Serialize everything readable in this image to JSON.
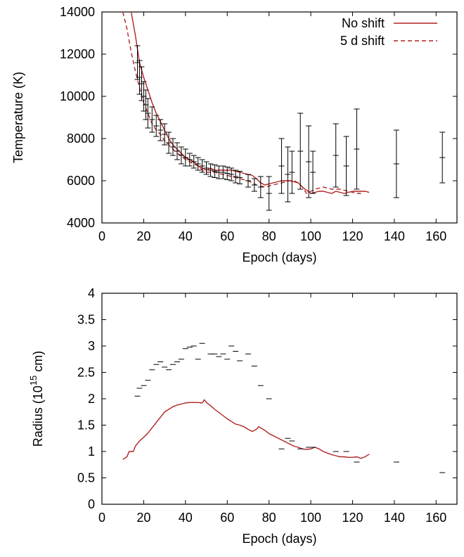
{
  "chart_data": [
    {
      "type": "line",
      "xlabel": "Epoch (days)",
      "ylabel": "Temperature (K)",
      "xlim": [
        0,
        170
      ],
      "ylim": [
        4000,
        14000
      ],
      "xticks": [
        0,
        20,
        40,
        60,
        80,
        100,
        120,
        140,
        160
      ],
      "yticks": [
        4000,
        6000,
        8000,
        10000,
        12000,
        14000
      ],
      "legend_position": "top-right",
      "colors": {
        "model": "#b22222",
        "data": "#000000"
      },
      "series": [
        {
          "name": "No shift",
          "style": "solid",
          "x": [
            14,
            16,
            18,
            20,
            22,
            24,
            26,
            28,
            30,
            32,
            34,
            36,
            38,
            40,
            42,
            44,
            46,
            48,
            50,
            52,
            54,
            56,
            58,
            60,
            62,
            64,
            66,
            68,
            70,
            72,
            74,
            76,
            78,
            80,
            82,
            84,
            86,
            88,
            90,
            92,
            94,
            96,
            98,
            100,
            102,
            104,
            106,
            108,
            110,
            112,
            114,
            116,
            118,
            120,
            122,
            124,
            126,
            128
          ],
          "y": [
            14000,
            12900,
            11600,
            10900,
            10300,
            9700,
            9200,
            8800,
            8400,
            8000,
            7700,
            7500,
            7300,
            7100,
            7000,
            6900,
            6700,
            6600,
            6500,
            6600,
            6500,
            6500,
            6500,
            6500,
            6500,
            6450,
            6400,
            6350,
            6300,
            6250,
            6100,
            5900,
            5800,
            5850,
            5900,
            5950,
            6000,
            6000,
            6000,
            5950,
            5900,
            5700,
            5550,
            5400,
            5450,
            5500,
            5500,
            5450,
            5400,
            5500,
            5450,
            5400,
            5450,
            5500,
            5500,
            5500,
            5500,
            5450
          ]
        },
        {
          "name": "5 d shift",
          "style": "dashed",
          "x": [
            10,
            12,
            14,
            16,
            18,
            20,
            22,
            24,
            26,
            28,
            30,
            32,
            34,
            36,
            38,
            40,
            42,
            44,
            46,
            48,
            50,
            52,
            54,
            56,
            58,
            60,
            62,
            64,
            66,
            68,
            70,
            72,
            74,
            76,
            78,
            80,
            82,
            84,
            86,
            88,
            90,
            92,
            94,
            96,
            98,
            100,
            102,
            104,
            106,
            108,
            110,
            112,
            114,
            116,
            118,
            120,
            122,
            124
          ],
          "y": [
            14000,
            13200,
            12100,
            11200,
            10400,
            9700,
            9200,
            8700,
            8400,
            8200,
            7900,
            7700,
            7500,
            7300,
            7200,
            7000,
            6900,
            6800,
            6700,
            6500,
            6400,
            6400,
            6400,
            6350,
            6300,
            6250,
            6200,
            6150,
            6100,
            6050,
            6000,
            5900,
            5800,
            5750,
            5700,
            5750,
            5800,
            5850,
            5900,
            5950,
            6000,
            6000,
            5900,
            5700,
            5400,
            5500,
            5600,
            5650,
            5700,
            5650,
            5600,
            5600,
            5600,
            5550,
            5500,
            5450,
            5400,
            5400
          ]
        }
      ],
      "observations": {
        "x": [
          17,
          18,
          19,
          20,
          21,
          22,
          24,
          26,
          28,
          30,
          32,
          34,
          36,
          38,
          40,
          42,
          44,
          46,
          48,
          50,
          52,
          54,
          56,
          58,
          60,
          62,
          64,
          66,
          70,
          73,
          76,
          80,
          86,
          89,
          91,
          95,
          99,
          101,
          112,
          117,
          122,
          141,
          163
        ],
        "y": [
          11600,
          10900,
          10600,
          10000,
          9600,
          9200,
          8900,
          8600,
          8400,
          8200,
          7800,
          7600,
          7400,
          7200,
          7100,
          7000,
          6900,
          6800,
          6700,
          6600,
          6500,
          6450,
          6400,
          6400,
          6350,
          6300,
          6200,
          6150,
          6000,
          5800,
          5700,
          5400,
          6700,
          6300,
          6400,
          7400,
          6900,
          6400,
          7200,
          6700,
          7500,
          6800,
          7100
        ],
        "err": [
          800,
          800,
          800,
          700,
          700,
          700,
          600,
          500,
          500,
          500,
          500,
          400,
          400,
          400,
          400,
          300,
          300,
          300,
          300,
          300,
          300,
          300,
          300,
          300,
          300,
          300,
          300,
          300,
          300,
          300,
          500,
          800,
          1300,
          1300,
          1000,
          1800,
          1700,
          1000,
          1500,
          1400,
          1900,
          1600,
          1200
        ]
      }
    },
    {
      "type": "line",
      "xlabel": "Epoch (days)",
      "ylabel_prefix": "Radius (10",
      "ylabel_exponent": "15",
      "ylabel_suffix": " cm)",
      "xlim": [
        0,
        170
      ],
      "ylim": [
        0,
        4
      ],
      "xticks": [
        0,
        20,
        40,
        60,
        80,
        100,
        120,
        140,
        160
      ],
      "yticks": [
        0,
        0.5,
        1,
        1.5,
        2,
        2.5,
        3,
        3.5,
        4
      ],
      "colors": {
        "model": "#b22222",
        "data": "#000000"
      },
      "series": [
        {
          "style": "solid",
          "x": [
            10,
            12,
            13,
            15,
            16,
            18,
            20,
            22,
            24,
            26,
            28,
            30,
            32,
            34,
            36,
            38,
            40,
            42,
            44,
            46,
            48,
            49,
            50,
            52,
            54,
            56,
            58,
            60,
            62,
            64,
            66,
            68,
            70,
            72,
            74,
            75,
            76,
            78,
            80,
            82,
            84,
            86,
            88,
            90,
            92,
            94,
            96,
            98,
            100,
            102,
            104,
            106,
            108,
            110,
            112,
            114,
            116,
            118,
            120,
            122,
            124,
            126,
            128
          ],
          "y": [
            0.85,
            0.9,
            1.0,
            1.0,
            1.1,
            1.2,
            1.27,
            1.35,
            1.45,
            1.55,
            1.65,
            1.75,
            1.8,
            1.85,
            1.88,
            1.9,
            1.92,
            1.93,
            1.93,
            1.93,
            1.92,
            1.98,
            1.93,
            1.87,
            1.8,
            1.74,
            1.68,
            1.62,
            1.57,
            1.52,
            1.5,
            1.47,
            1.42,
            1.38,
            1.42,
            1.47,
            1.45,
            1.4,
            1.34,
            1.3,
            1.26,
            1.22,
            1.18,
            1.14,
            1.1,
            1.08,
            1.05,
            1.04,
            1.05,
            1.08,
            1.05,
            1.0,
            0.97,
            0.94,
            0.92,
            0.9,
            0.9,
            0.89,
            0.89,
            0.9,
            0.87,
            0.9,
            0.95
          ]
        }
      ],
      "observations": {
        "x": [
          17,
          18,
          20,
          22,
          24,
          26,
          28,
          30,
          32,
          34,
          36,
          38,
          40,
          42,
          44,
          46,
          48,
          52,
          54,
          56,
          58,
          60,
          62,
          64,
          66,
          70,
          73,
          76,
          80,
          86,
          89,
          91,
          95,
          99,
          101,
          112,
          117,
          122,
          141,
          163
        ],
        "y": [
          2.05,
          2.2,
          2.25,
          2.35,
          2.55,
          2.65,
          2.7,
          2.6,
          2.55,
          2.65,
          2.7,
          2.75,
          2.95,
          2.98,
          3.0,
          2.75,
          3.05,
          2.85,
          2.85,
          2.8,
          2.85,
          2.75,
          3.0,
          2.9,
          2.72,
          2.85,
          2.62,
          2.25,
          2.0,
          1.05,
          1.25,
          1.2,
          1.05,
          1.08,
          1.08,
          1.0,
          1.0,
          0.8,
          0.8,
          0.6
        ]
      }
    }
  ]
}
